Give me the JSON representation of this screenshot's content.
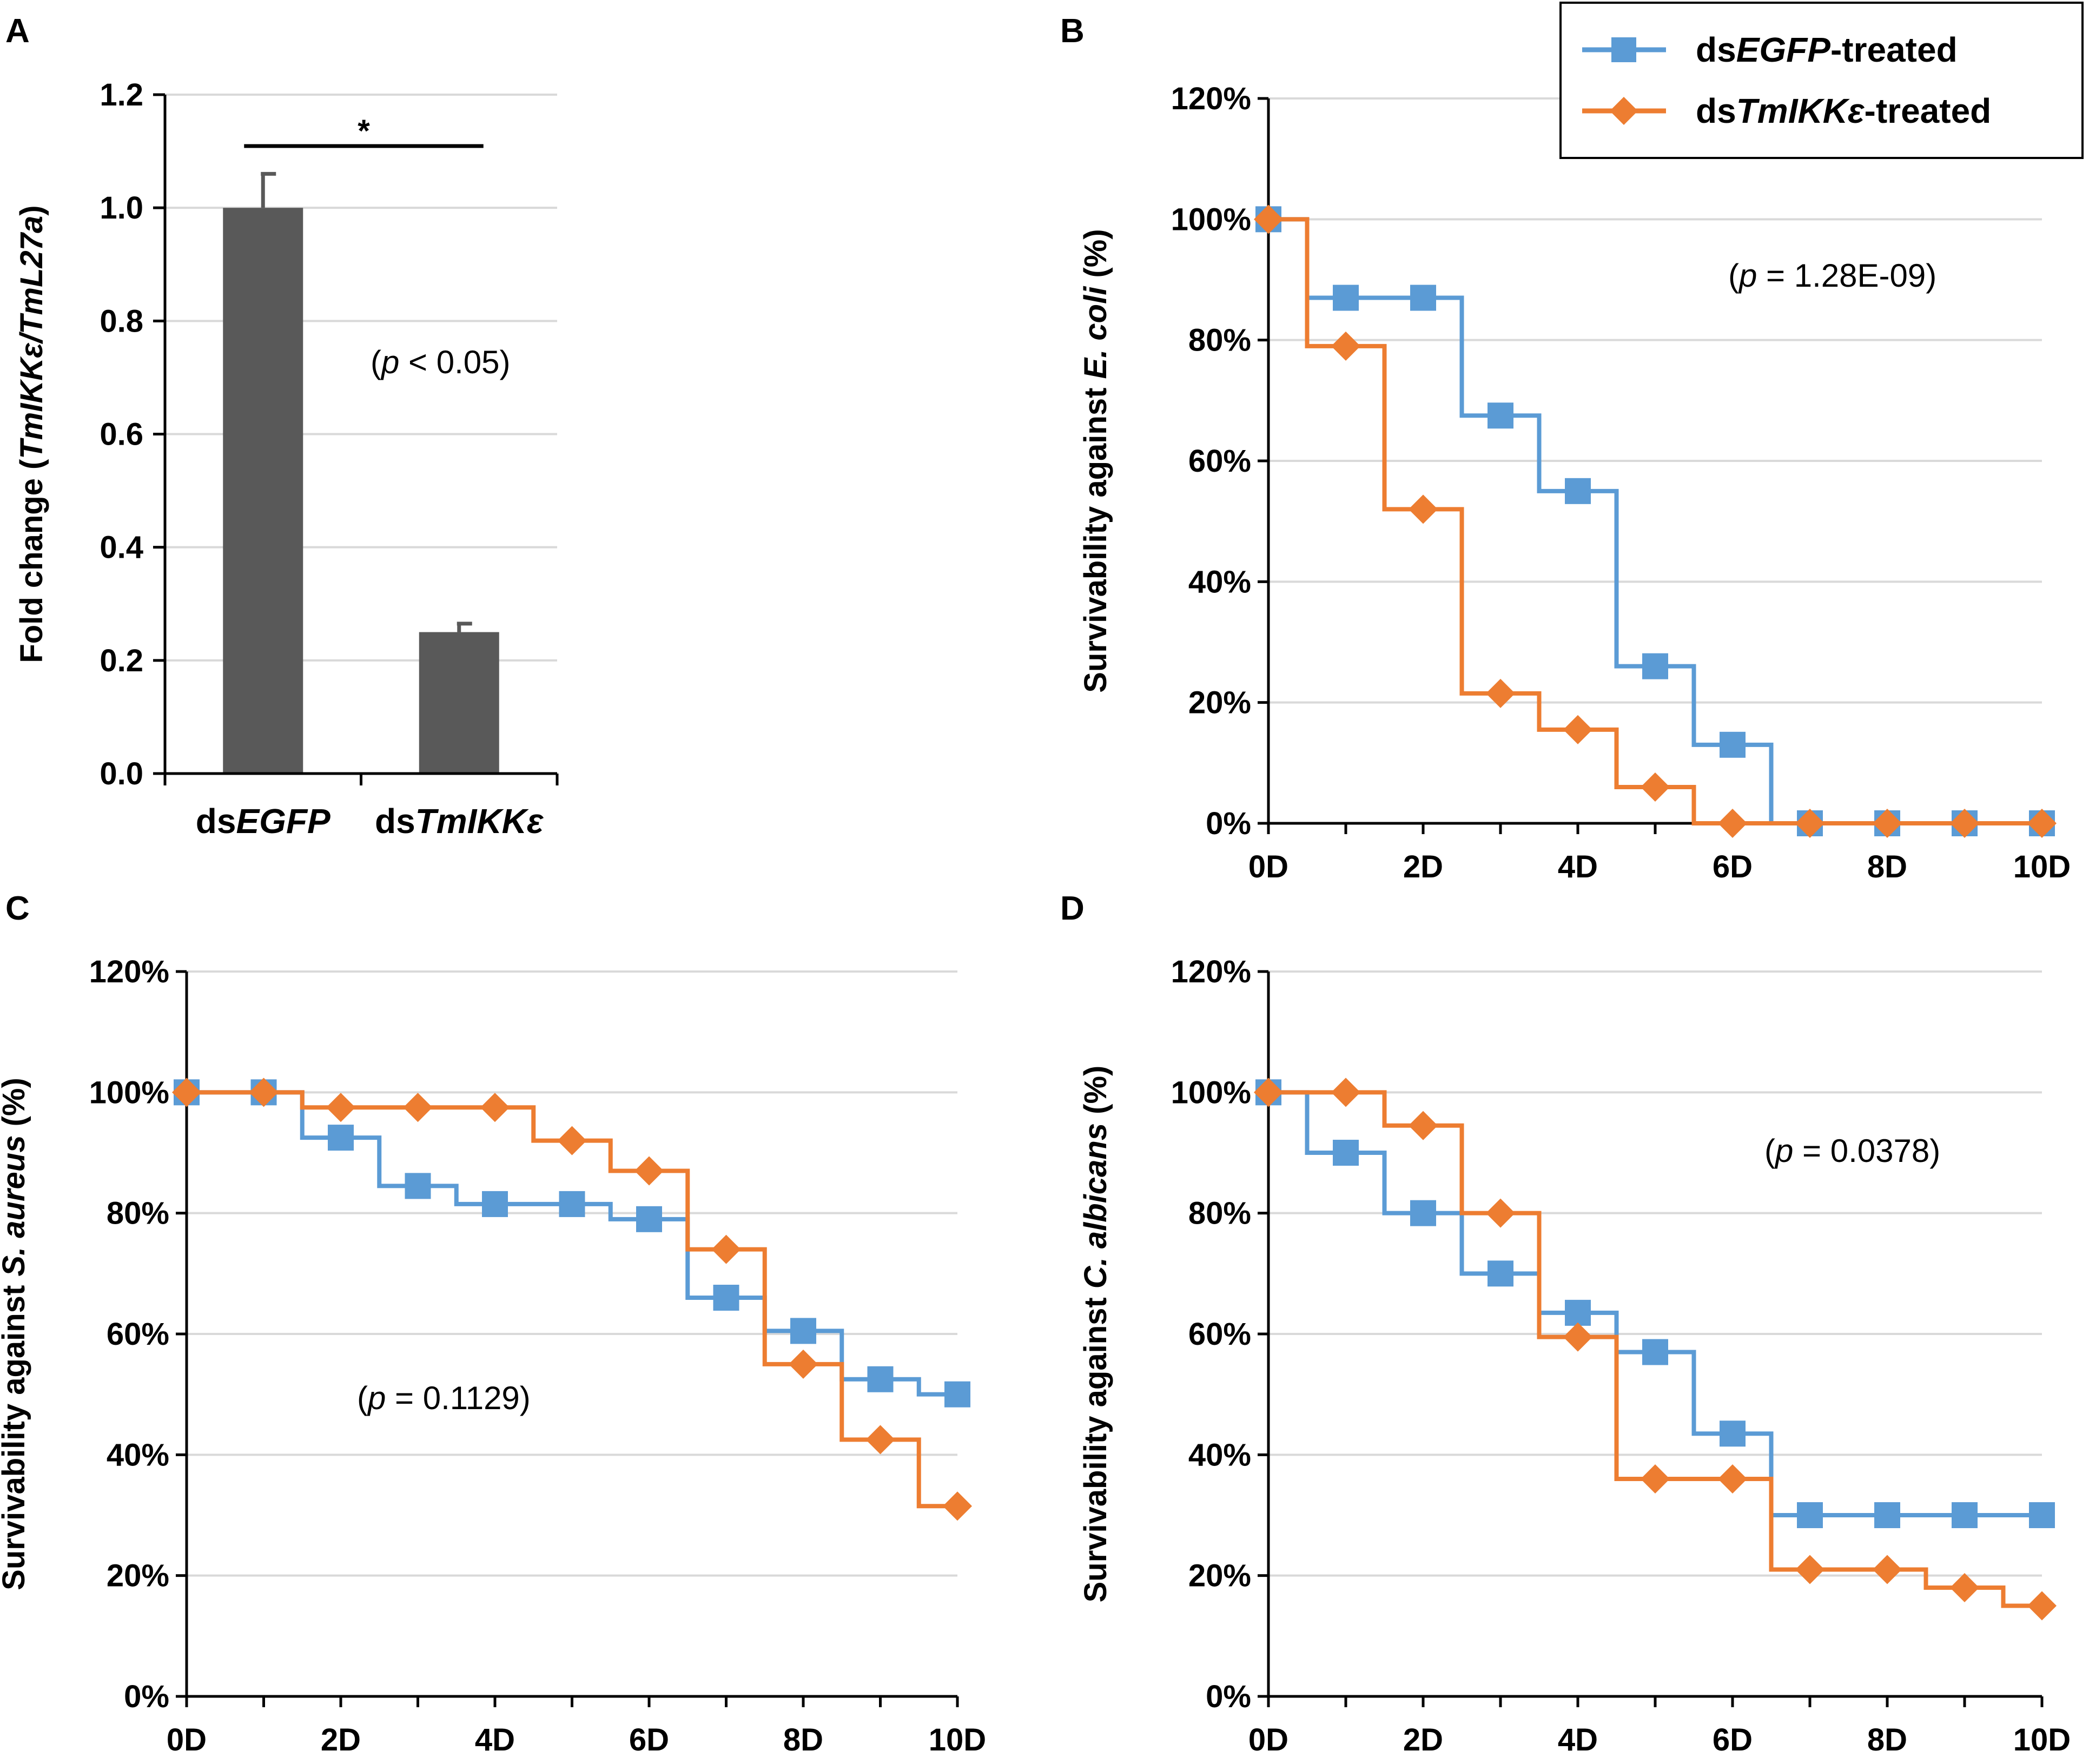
{
  "colors": {
    "egfp": "#5B9BD5",
    "tmikk": "#ED7D31",
    "bar": "#595959",
    "grid": "#D9D9D9",
    "axis": "#000000"
  },
  "legend": {
    "egfp": {
      "prefix": "ds",
      "gene": "EGFP",
      "suffix": "-treated"
    },
    "tmikk": {
      "prefix": "ds",
      "gene": "TmIKKε",
      "suffix": "-treated"
    }
  },
  "chart_data": [
    {
      "panel": "A",
      "type": "bar",
      "categories": [
        {
          "prefix": "ds",
          "gene": "EGFP"
        },
        {
          "prefix": "ds",
          "gene": "TmIKKε"
        }
      ],
      "values": [
        1.0,
        0.25
      ],
      "errors": [
        0.06,
        0.015
      ],
      "ylim": [
        0,
        1.2
      ],
      "yticks": [
        "0.0",
        "0.2",
        "0.4",
        "0.6",
        "0.8",
        "1.0",
        "1.2"
      ],
      "ylabel": {
        "prefix": "Fold change (",
        "italic": "TmIKKε/TmL27a",
        "suffix": ")"
      },
      "significance": "*",
      "pvalue": {
        "open": "(",
        "p": "p",
        "text": " < 0.05)"
      }
    },
    {
      "panel": "B",
      "type": "line",
      "x": [
        0,
        1,
        2,
        3,
        4,
        5,
        6,
        7,
        8,
        9,
        10
      ],
      "xticks": [
        "0D",
        "2D",
        "4D",
        "6D",
        "8D",
        "10D"
      ],
      "yticks": [
        "0%",
        "20%",
        "40%",
        "60%",
        "80%",
        "100%",
        "120%"
      ],
      "ylim": [
        0,
        120
      ],
      "ylabel": {
        "prefix": "Survivability against ",
        "italic": "E. coli",
        "suffix": " (%)"
      },
      "pvalue": {
        "open": "(",
        "p": "p",
        "text": " = 1.28E-09)"
      },
      "series": [
        {
          "name": "dsEGFP-treated",
          "key": "egfp",
          "values": [
            100,
            87,
            87,
            67.5,
            55,
            26,
            13,
            0,
            0,
            0,
            0
          ]
        },
        {
          "name": "dsTmIKKε-treated",
          "key": "tmikk",
          "values": [
            100,
            79,
            52,
            21.5,
            15.5,
            6,
            0,
            0,
            0,
            0,
            0
          ]
        }
      ]
    },
    {
      "panel": "C",
      "type": "line",
      "x": [
        0,
        1,
        2,
        3,
        4,
        5,
        6,
        7,
        8,
        9,
        10
      ],
      "xticks": [
        "0D",
        "2D",
        "4D",
        "6D",
        "8D",
        "10D"
      ],
      "yticks": [
        "0%",
        "20%",
        "40%",
        "60%",
        "80%",
        "100%",
        "120%"
      ],
      "ylim": [
        0,
        120
      ],
      "ylabel": {
        "prefix": "Survivability against ",
        "italic": "S. aureus",
        "suffix": " (%)"
      },
      "pvalue": {
        "open": "(",
        "p": "p",
        "text": " = 0.1129)"
      },
      "series": [
        {
          "name": "dsEGFP-treated",
          "key": "egfp",
          "values": [
            100,
            100,
            92.5,
            84.5,
            81.5,
            81.5,
            79,
            66,
            60.5,
            52.5,
            50
          ]
        },
        {
          "name": "dsTmIKKε-treated",
          "key": "tmikk",
          "values": [
            100,
            100,
            97.5,
            97.5,
            97.5,
            92,
            87,
            74,
            55,
            42.5,
            31.5
          ]
        }
      ]
    },
    {
      "panel": "D",
      "type": "line",
      "x": [
        0,
        1,
        2,
        3,
        4,
        5,
        6,
        7,
        8,
        9,
        10
      ],
      "xticks": [
        "0D",
        "2D",
        "4D",
        "6D",
        "8D",
        "10D"
      ],
      "yticks": [
        "0%",
        "20%",
        "40%",
        "60%",
        "80%",
        "100%",
        "120%"
      ],
      "ylim": [
        0,
        120
      ],
      "ylabel": {
        "prefix": "Survivability against ",
        "italic": "C. albicans",
        "suffix": " (%)"
      },
      "pvalue": {
        "open": "(",
        "p": "p",
        "text": " = 0.0378)"
      },
      "series": [
        {
          "name": "dsEGFP-treated",
          "key": "egfp",
          "values": [
            100,
            90,
            80,
            70,
            63.5,
            57,
            43.5,
            30,
            30,
            30,
            30
          ]
        },
        {
          "name": "dsTmIKKε-treated",
          "key": "tmikk",
          "values": [
            100,
            100,
            94.5,
            80,
            59.5,
            36,
            36,
            21,
            21,
            18,
            15
          ]
        }
      ]
    }
  ]
}
